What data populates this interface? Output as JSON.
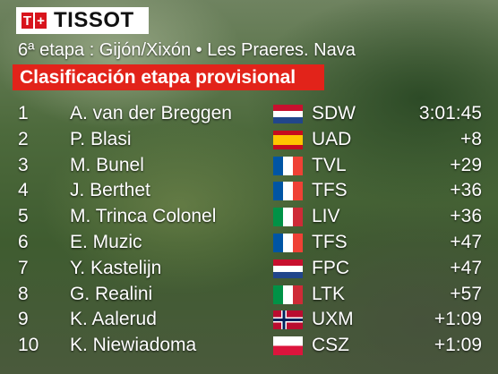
{
  "header": {
    "logo": "TISSOT",
    "stage": "6ª etapa : Gijón/Xixón • Les Praeres. Nava",
    "title": "Clasificación etapa provisional"
  },
  "table": {
    "rows": [
      [
        "1",
        "A. van der Breggen",
        "SDW",
        "3:01:45"
      ],
      [
        "2",
        "P. Blasi",
        "UAD",
        "+8"
      ],
      [
        "3",
        "M. Bunel",
        "TVL",
        "+29"
      ],
      [
        "4",
        "J. Berthet",
        "TFS",
        "+36"
      ],
      [
        "5",
        "M. Trinca Colonel",
        "LIV",
        "+36"
      ],
      [
        "6",
        "E. Muzic",
        "TFS",
        "+47"
      ],
      [
        "7",
        "Y. Kastelijn",
        "FPC",
        "+47"
      ],
      [
        "8",
        "G. Realini",
        "LTK",
        "+57"
      ],
      [
        "9",
        "K. Aalerud",
        "UXM",
        "+1:09"
      ],
      [
        "10",
        "K. Niewiadoma",
        "CSZ",
        "+1:09"
      ]
    ]
  }
}
